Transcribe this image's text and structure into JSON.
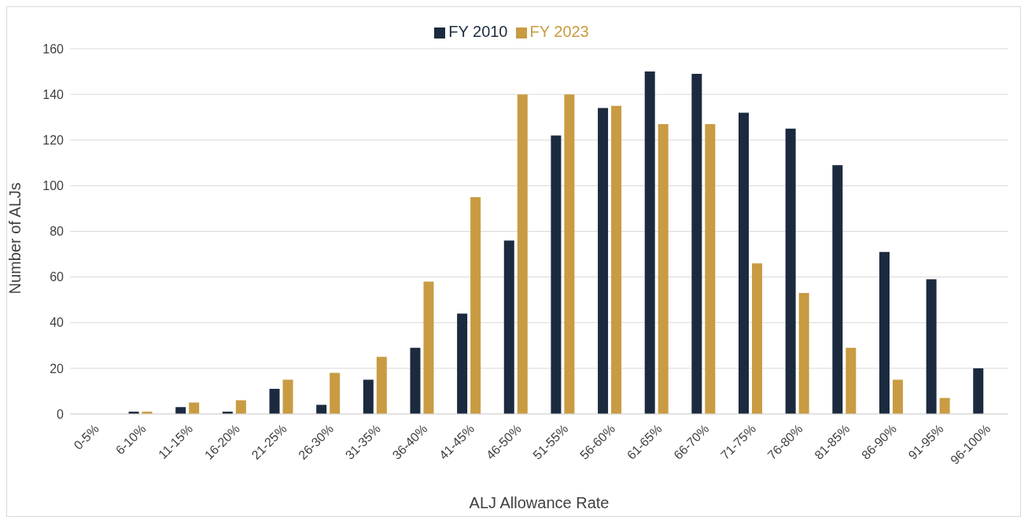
{
  "chart_data": {
    "type": "bar",
    "xlabel": "ALJ Allowance Rate",
    "ylabel": "Number of ALJs",
    "categories": [
      "0-5%",
      "6-10%",
      "11-15%",
      "16-20%",
      "21-25%",
      "26-30%",
      "31-35%",
      "36-40%",
      "41-45%",
      "46-50%",
      "51-55%",
      "56-60%",
      "61-65%",
      "66-70%",
      "71-75%",
      "76-80%",
      "81-85%",
      "86-90%",
      "91-95%",
      "96-100%"
    ],
    "series": [
      {
        "name": "FY 2010",
        "color": "#1b2a3f",
        "values": [
          0,
          1,
          3,
          1,
          11,
          4,
          15,
          29,
          44,
          76,
          122,
          134,
          150,
          149,
          132,
          125,
          109,
          71,
          59,
          20
        ]
      },
      {
        "name": "FY 2023",
        "color": "#c99b42",
        "values": [
          0,
          1,
          5,
          6,
          15,
          18,
          25,
          58,
          95,
          140,
          140,
          135,
          127,
          127,
          66,
          53,
          29,
          15,
          7,
          0
        ]
      }
    ],
    "ylim": [
      0,
      160
    ],
    "yticks": [
      0,
      20,
      40,
      60,
      80,
      100,
      120,
      140,
      160
    ],
    "grid": "y",
    "legend": "top"
  }
}
